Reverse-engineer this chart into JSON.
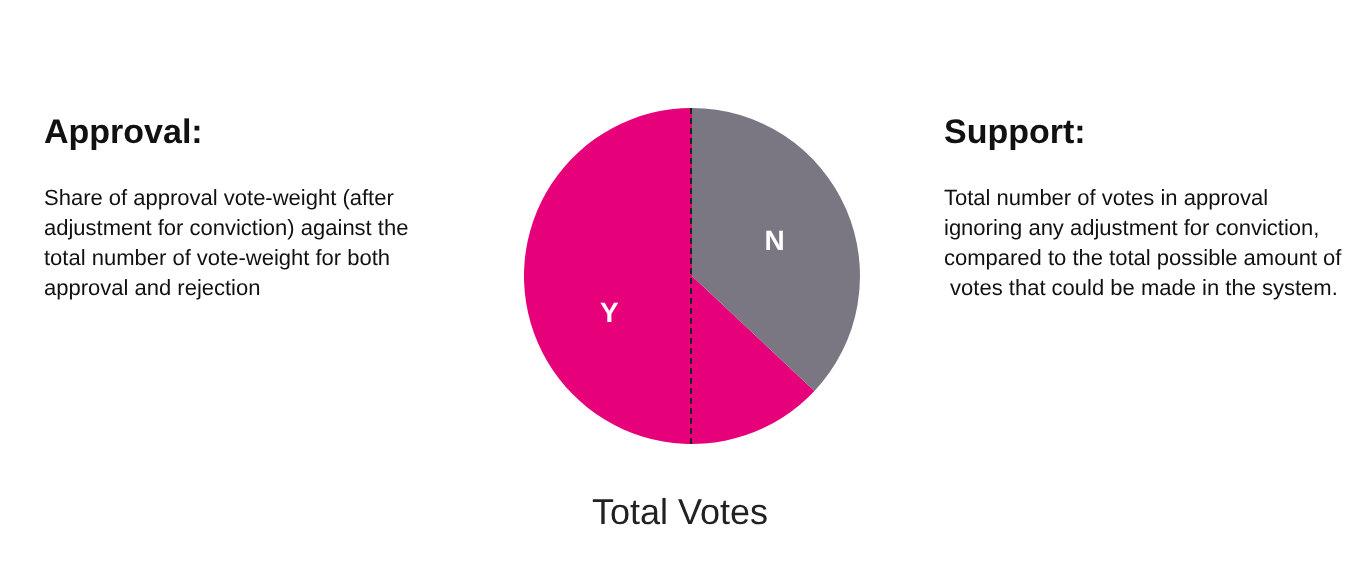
{
  "chart_data": {
    "type": "pie",
    "title": "Total Votes",
    "categories": [
      "Y",
      "N"
    ],
    "values": [
      63,
      37
    ],
    "colors": [
      "#e6007a",
      "#7a7782"
    ],
    "annotations": [
      "Approval:",
      "Share of approval vote-weight (after adjustment for conviction) against the total number of vote-weight for both approval and rejection",
      "Support:",
      "Total number of votes in approval ignoring any adjustment for conviction, compared to the total possible amount of votes that could be made in the system."
    ],
    "legend": false
  }
}
